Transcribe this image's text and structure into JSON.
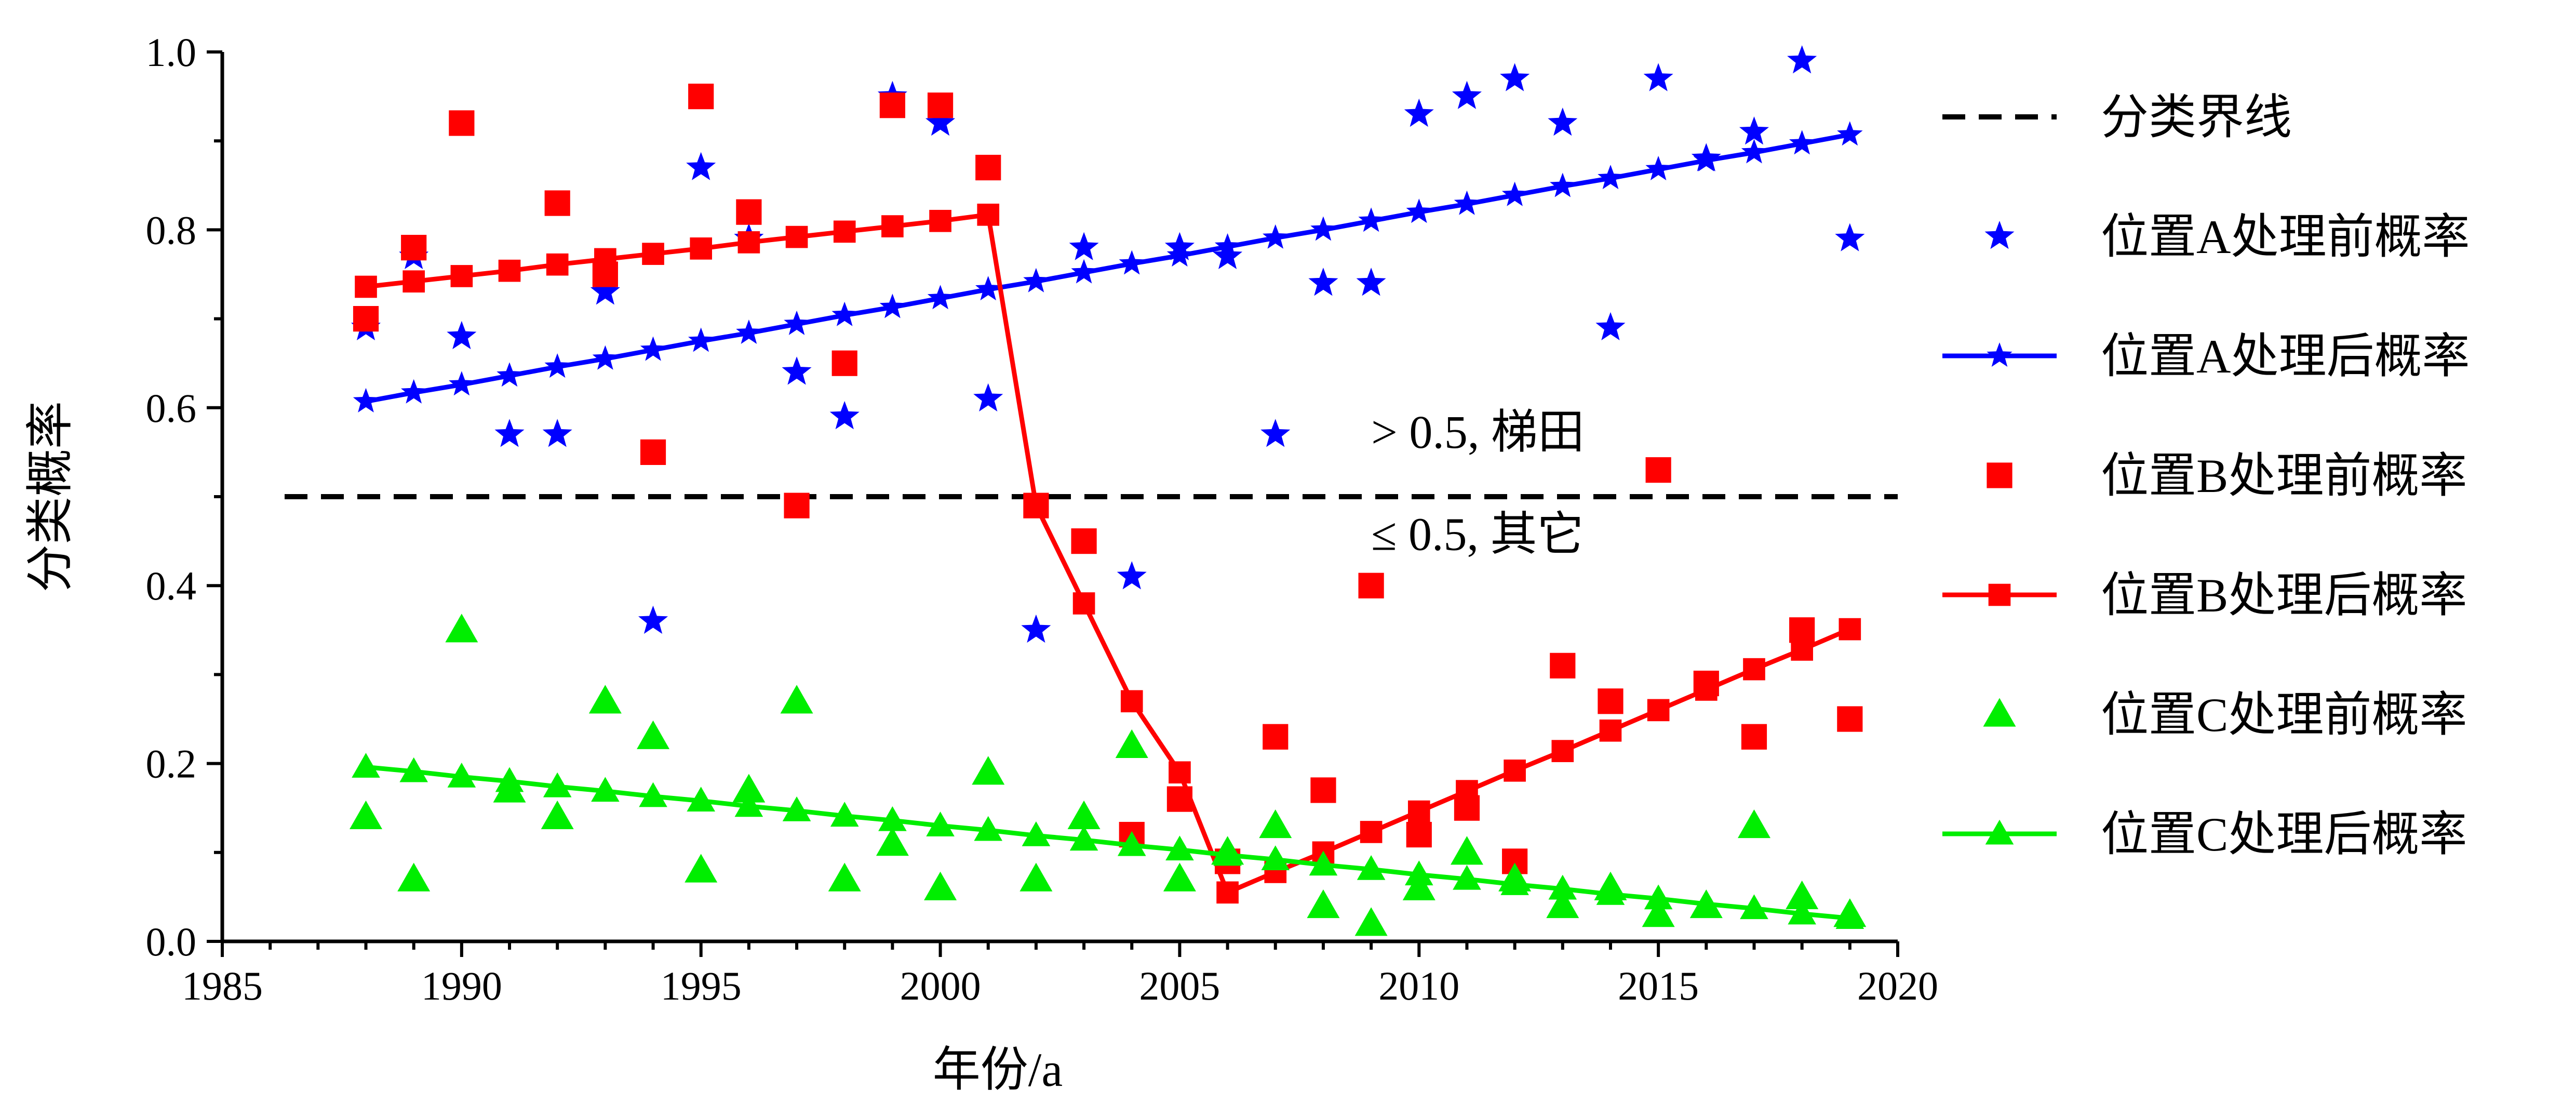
{
  "chart_data": {
    "type": "scatter",
    "xlabel": "年份/a",
    "ylabel": "分类概率",
    "xlim": [
      1985,
      2020
    ],
    "ylim": [
      0.0,
      1.0
    ],
    "x_ticks": [
      "1985",
      "1990",
      "1995",
      "2000",
      "2005",
      "2010",
      "2015",
      "2020"
    ],
    "y_ticks": [
      "0.0",
      "0.2",
      "0.4",
      "0.6",
      "0.8",
      "1.0"
    ],
    "grid": false,
    "legend_position": "right",
    "threshold": {
      "y": 0.5,
      "name": "分类界线",
      "style": "dashed",
      "color": "#000000"
    },
    "annotations": [
      {
        "text": "> 0.5, 梯田",
        "x": 2009,
        "y": 0.555
      },
      {
        "text": "≤ 0.5, 其它",
        "x": 2009,
        "y": 0.44
      }
    ],
    "series": [
      {
        "name": "位置A处理前概率",
        "kind": "scatter",
        "marker": "star",
        "color": "#0000FF",
        "x": [
          1988,
          1989,
          1990,
          1991,
          1992,
          1993,
          1994,
          1995,
          1996,
          1997,
          1998,
          1999,
          2000,
          2001,
          2002,
          2003,
          2004,
          2005,
          2006,
          2007,
          2008,
          2009,
          2010,
          2011,
          2012,
          2013,
          2014,
          2015,
          2016,
          2017,
          2018,
          2019
        ],
        "y": [
          0.69,
          0.77,
          0.68,
          0.57,
          0.57,
          0.73,
          0.36,
          0.87,
          0.79,
          0.64,
          0.59,
          0.95,
          0.92,
          0.61,
          0.35,
          0.78,
          0.41,
          0.78,
          0.77,
          0.57,
          0.74,
          0.74,
          0.93,
          0.95,
          0.97,
          0.92,
          0.69,
          0.97,
          0.88,
          0.91,
          0.99,
          0.79
        ]
      },
      {
        "name": "位置A处理后概率",
        "kind": "line",
        "marker": "star",
        "color": "#0000FF",
        "x": [
          1988,
          1989,
          1990,
          1991,
          1992,
          1993,
          1994,
          1995,
          1996,
          1997,
          1998,
          1999,
          2000,
          2001,
          2002,
          2003,
          2004,
          2005,
          2006,
          2007,
          2008,
          2009,
          2010,
          2011,
          2012,
          2013,
          2014,
          2015,
          2016,
          2017,
          2018,
          2019
        ],
        "y": [
          0.607,
          0.617,
          0.626,
          0.636,
          0.646,
          0.655,
          0.665,
          0.675,
          0.684,
          0.694,
          0.704,
          0.713,
          0.723,
          0.733,
          0.742,
          0.752,
          0.762,
          0.771,
          0.781,
          0.791,
          0.8,
          0.81,
          0.82,
          0.829,
          0.839,
          0.849,
          0.858,
          0.868,
          0.878,
          0.887,
          0.897,
          0.907
        ]
      },
      {
        "name": "位置B处理前概率",
        "kind": "scatter",
        "marker": "square",
        "color": "#FF0000",
        "x": [
          1988,
          1989,
          1990,
          1992,
          1993,
          1994,
          1995,
          1996,
          1997,
          1998,
          1999,
          2000,
          2001,
          2002,
          2003,
          2004,
          2005,
          2006,
          2007,
          2008,
          2009,
          2010,
          2011,
          2012,
          2013,
          2014,
          2015,
          2016,
          2017,
          2018,
          2019
        ],
        "y": [
          0.7,
          0.78,
          0.92,
          0.83,
          0.75,
          0.55,
          0.95,
          0.82,
          0.49,
          0.65,
          0.94,
          0.94,
          0.87,
          0.49,
          0.45,
          0.12,
          0.16,
          0.09,
          0.23,
          0.17,
          0.4,
          0.12,
          0.15,
          0.09,
          0.31,
          0.27,
          0.53,
          0.29,
          0.23,
          0.35,
          0.25
        ]
      },
      {
        "name": "位置B处理后概率",
        "kind": "line",
        "marker": "square",
        "color": "#FF0000",
        "x": [
          1988,
          1989,
          1990,
          1991,
          1992,
          1993,
          1994,
          1995,
          1996,
          1997,
          1998,
          1999,
          2000,
          2001,
          2002,
          2003,
          2004,
          2005,
          2006,
          2007,
          2008,
          2009,
          2010,
          2011,
          2012,
          2013,
          2014,
          2015,
          2016,
          2017,
          2018,
          2019
        ],
        "y": [
          0.736,
          0.742,
          0.748,
          0.754,
          0.761,
          0.767,
          0.773,
          0.779,
          0.786,
          0.792,
          0.798,
          0.804,
          0.81,
          0.817,
          0.49,
          0.38,
          0.27,
          0.19,
          0.055,
          0.078,
          0.1,
          0.123,
          0.146,
          0.169,
          0.192,
          0.214,
          0.237,
          0.26,
          0.283,
          0.306,
          0.328,
          0.351
        ]
      },
      {
        "name": "位置C处理前概率",
        "kind": "scatter",
        "marker": "triangle",
        "color": "#00EE00",
        "x": [
          1988,
          1989,
          1990,
          1991,
          1992,
          1993,
          1994,
          1995,
          1996,
          1997,
          1998,
          1999,
          2000,
          2001,
          2002,
          2003,
          2004,
          2005,
          2006,
          2007,
          2008,
          2009,
          2010,
          2011,
          2012,
          2013,
          2014,
          2015,
          2016,
          2017,
          2018,
          2019
        ],
        "y": [
          0.14,
          0.07,
          0.35,
          0.17,
          0.14,
          0.27,
          0.23,
          0.08,
          0.17,
          0.27,
          0.07,
          0.11,
          0.06,
          0.19,
          0.07,
          0.14,
          0.22,
          0.07,
          0.1,
          0.13,
          0.04,
          0.02,
          0.06,
          0.1,
          0.07,
          0.04,
          0.06,
          0.03,
          0.04,
          0.13,
          0.05,
          0.03
        ]
      },
      {
        "name": "位置C处理后概率",
        "kind": "line",
        "marker": "triangle",
        "color": "#00EE00",
        "x": [
          1988,
          1989,
          1990,
          1991,
          1992,
          1993,
          1994,
          1995,
          1996,
          1997,
          1998,
          1999,
          2000,
          2001,
          2002,
          2003,
          2004,
          2005,
          2006,
          2007,
          2008,
          2009,
          2010,
          2011,
          2012,
          2013,
          2014,
          2015,
          2016,
          2017,
          2018,
          2019
        ],
        "y": [
          0.196,
          0.191,
          0.185,
          0.18,
          0.174,
          0.169,
          0.163,
          0.158,
          0.152,
          0.147,
          0.141,
          0.136,
          0.13,
          0.125,
          0.119,
          0.114,
          0.108,
          0.103,
          0.097,
          0.092,
          0.086,
          0.081,
          0.075,
          0.07,
          0.064,
          0.059,
          0.053,
          0.048,
          0.042,
          0.037,
          0.031,
          0.026
        ]
      }
    ]
  }
}
